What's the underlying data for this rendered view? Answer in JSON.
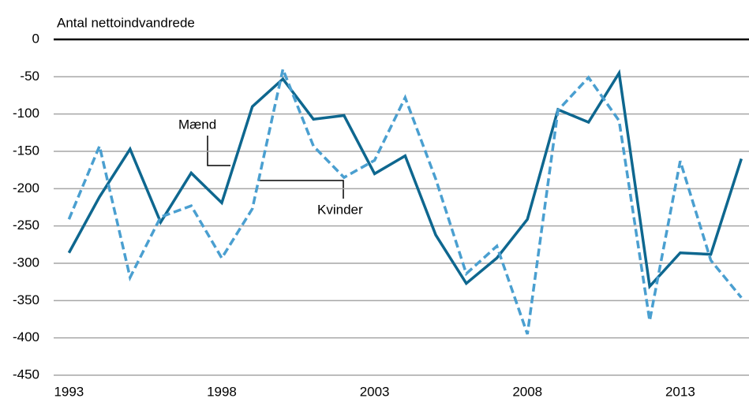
{
  "chart_data": {
    "type": "line",
    "y_axis_label": "Antal nettoindvandrede",
    "x": [
      1993,
      1994,
      1995,
      1996,
      1997,
      1998,
      1999,
      2000,
      2001,
      2002,
      2003,
      2004,
      2005,
      2006,
      2007,
      2008,
      2009,
      2010,
      2011,
      2012,
      2013,
      2014,
      2015
    ],
    "series": [
      {
        "name": "Mænd",
        "color": "#0e678f",
        "dashed": false,
        "values": [
          -286,
          -211,
          -147,
          -245,
          -179,
          -219,
          -90,
          -53,
          -107,
          -102,
          -180,
          -156,
          -262,
          -327,
          -293,
          -241,
          -94,
          -111,
          -45,
          -331,
          -286,
          -288,
          -160
        ]
      },
      {
        "name": "Kvinder",
        "color": "#4a9fd0",
        "dashed": true,
        "values": [
          -241,
          -143,
          -319,
          -238,
          -223,
          -293,
          -227,
          -40,
          -143,
          -185,
          -162,
          -78,
          -187,
          -314,
          -277,
          -395,
          -95,
          -51,
          -109,
          -377,
          -163,
          -296,
          -346
        ]
      }
    ],
    "xlim": [
      1992.5,
      2015.25
    ],
    "xticks": [
      1993,
      1998,
      2003,
      2008,
      2013
    ],
    "ylim": [
      -450,
      0
    ],
    "yticks": [
      0,
      -50,
      -100,
      -150,
      -200,
      -250,
      -300,
      -350,
      -400,
      -450
    ],
    "grid": true
  }
}
